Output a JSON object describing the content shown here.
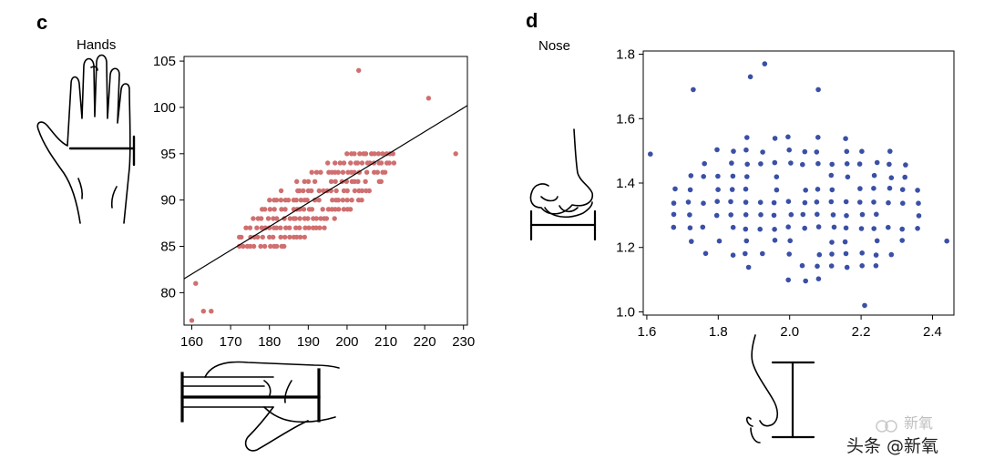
{
  "panels": {
    "c": {
      "letter": "c",
      "body_part": "Hands"
    },
    "d": {
      "letter": "d",
      "body_part": "Nose"
    }
  },
  "watermark": {
    "text": "头条 @新氧",
    "faint_text": "新氧"
  },
  "chart_data": [
    {
      "type": "scatter",
      "title": "",
      "xlabel": "",
      "ylabel": "",
      "xlim": [
        158,
        231
      ],
      "ylim": [
        76.5,
        105.5
      ],
      "xticks": [
        160,
        170,
        180,
        190,
        200,
        210,
        220,
        230
      ],
      "yticks": [
        80,
        85,
        90,
        95,
        100,
        105
      ],
      "grid": false,
      "point_color": "#d06f6f",
      "line_color": "#000000",
      "fit_line": {
        "x": [
          158,
          231
        ],
        "y": [
          81.5,
          100.2
        ]
      },
      "cluster_center": [
        192,
        89.5
      ],
      "outliers": [
        [
          160,
          77
        ],
        [
          161,
          81
        ],
        [
          163,
          78
        ],
        [
          165,
          78
        ],
        [
          203,
          104
        ],
        [
          221,
          101
        ],
        [
          228,
          95
        ]
      ]
    },
    {
      "type": "scatter",
      "title": "",
      "xlabel": "",
      "ylabel": "",
      "xlim": [
        1.59,
        2.46
      ],
      "ylim": [
        0.99,
        1.81
      ],
      "xticks": [
        1.6,
        1.8,
        2.0,
        2.2,
        2.4
      ],
      "yticks": [
        1.0,
        1.2,
        1.4,
        1.6,
        1.8
      ],
      "tick_labels_x": [
        "1.6",
        "1.8",
        "2.0",
        "2.2",
        "2.4"
      ],
      "tick_labels_y": [
        "1.0",
        "1.2",
        "1.4",
        "1.6",
        "1.8"
      ],
      "grid": false,
      "point_color": "#3a4fa6",
      "cluster_center": [
        2.03,
        1.34
      ],
      "outliers": [
        [
          1.93,
          1.77
        ],
        [
          1.89,
          1.73
        ],
        [
          1.73,
          1.69
        ],
        [
          2.08,
          1.69
        ],
        [
          2.21,
          1.02
        ],
        [
          2.44,
          1.22
        ],
        [
          1.61,
          1.49
        ]
      ]
    }
  ]
}
